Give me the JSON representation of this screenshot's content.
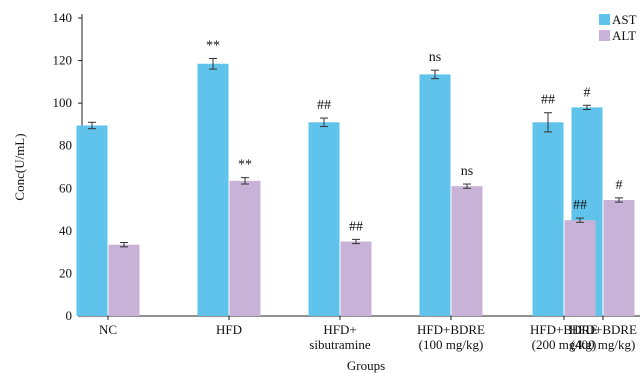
{
  "chart_data": {
    "type": "bar",
    "xlabel": "Groups",
    "ylabel": "Conc(U/mL)",
    "ylim": [
      0,
      140
    ],
    "yticks": [
      0,
      20,
      40,
      60,
      80,
      100,
      120,
      140
    ],
    "grid": false,
    "legend_position": "top-right",
    "categories": [
      [
        "NC"
      ],
      [
        "HFD"
      ],
      [
        "HFD+",
        "sibutramine"
      ],
      [
        "HFD+BDRE",
        "(100 mg/kg)"
      ],
      [
        "HFD+BDRE",
        "(200 mg/kg)"
      ],
      [
        "HFD+BDRE",
        "(400 mg/kg)"
      ]
    ],
    "series": [
      {
        "name": "AST",
        "color": "#5fc3ec",
        "values": [
          89.5,
          118.5,
          91,
          113.5,
          91,
          98
        ],
        "errors": [
          1.5,
          2.5,
          2,
          2,
          4.5,
          1
        ],
        "annotations": [
          "",
          "**",
          "##",
          "ns",
          "##",
          "#"
        ]
      },
      {
        "name": "ALT",
        "color": "#c8b2d8",
        "values": [
          33.5,
          63.5,
          35,
          61,
          45,
          54.5
        ],
        "errors": [
          1,
          1.5,
          1,
          1,
          1,
          1
        ],
        "annotations": [
          "",
          "**",
          "##",
          "ns",
          "##",
          "#"
        ]
      }
    ]
  }
}
